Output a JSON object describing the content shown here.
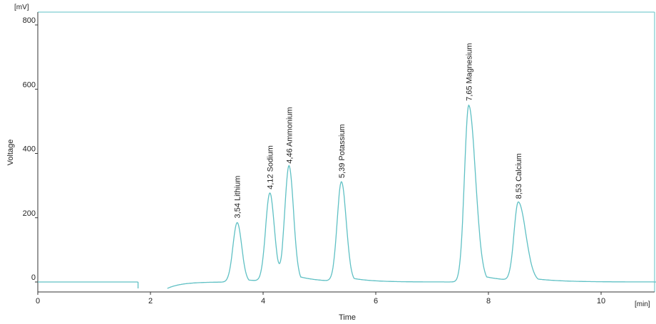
{
  "chart_data": {
    "type": "line",
    "xlabel": "Time",
    "ylabel": "Voltage",
    "x_unit": "[min]",
    "y_unit": "[mV]",
    "xlim": [
      0,
      11
    ],
    "ylim": [
      -20,
      830
    ],
    "x_ticks": [
      0,
      2,
      4,
      6,
      8,
      10
    ],
    "y_ticks": [
      0,
      200,
      400,
      600,
      800
    ],
    "color": "#5fc0c4",
    "grid": false,
    "baseline_segments": [
      {
        "x": [
          0,
          1.78
        ],
        "y": [
          0,
          0
        ]
      },
      {
        "x": [
          1.78,
          1.78
        ],
        "y": [
          0,
          -20
        ]
      }
    ],
    "baseline": {
      "start": 2.3,
      "end": 11,
      "value": 0
    },
    "peaks": [
      {
        "time": 3.54,
        "height": 185,
        "name": "Lithium",
        "label": "3,54 Lithium"
      },
      {
        "time": 4.12,
        "height": 275,
        "name": "Sodium",
        "label": "4,12 Sodium"
      },
      {
        "time": 4.46,
        "height": 355,
        "name": "Ammonium",
        "label": "4,46 Ammonium"
      },
      {
        "time": 5.39,
        "height": 310,
        "name": "Potassium",
        "label": "5,39 Potassium"
      },
      {
        "time": 7.65,
        "height": 550,
        "name": "Magnesium",
        "label": "7,65 Magnesium"
      },
      {
        "time": 8.53,
        "height": 245,
        "name": "Calcium",
        "label": "8,53 Calcium"
      }
    ]
  }
}
